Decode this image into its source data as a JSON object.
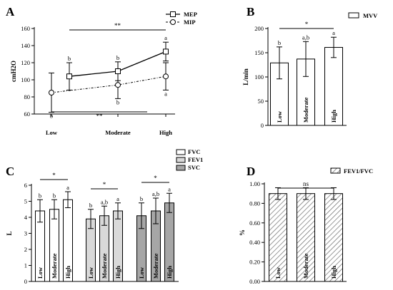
{
  "panels": {
    "A": "A",
    "B": "B",
    "C": "C",
    "D": "D"
  },
  "chart_data": [
    {
      "panel": "A",
      "type": "line",
      "ylabel": "cmH2O",
      "ylim": [
        60,
        160
      ],
      "yticks": [
        60,
        80,
        100,
        120,
        140,
        160
      ],
      "categories": [
        "Low",
        "Moderate",
        "High"
      ],
      "series": [
        {
          "name": "MEP",
          "marker": "square",
          "line": "solid",
          "values": [
            104,
            110,
            133
          ],
          "err": [
            16,
            11,
            11
          ],
          "letters": [
            "b",
            "b",
            "a"
          ]
        },
        {
          "name": "MIP",
          "marker": "circle",
          "line": "dotted",
          "values": [
            85,
            94,
            104
          ],
          "err": [
            23,
            16,
            16
          ],
          "letters": [
            "b",
            "b",
            "a"
          ]
        }
      ],
      "significance": [
        "**",
        "**"
      ]
    },
    {
      "panel": "B",
      "type": "bar",
      "ylabel": "L/min",
      "ylim": [
        0,
        200
      ],
      "yticks": [
        0,
        50,
        100,
        150,
        200
      ],
      "categories": [
        "Low",
        "Moderate",
        "High"
      ],
      "series": [
        {
          "name": "MVV",
          "fill": "#ffffff",
          "values": [
            129,
            137,
            161
          ],
          "err": [
            33,
            36,
            21
          ],
          "letters": [
            "b",
            "a,b",
            "a"
          ]
        }
      ],
      "significance": [
        "*"
      ]
    },
    {
      "panel": "C",
      "type": "bar",
      "ylabel": "L",
      "ylim": [
        0,
        6
      ],
      "yticks": [
        0,
        1,
        2,
        3,
        4,
        5,
        6
      ],
      "categories": [
        "Low",
        "Moderate",
        "High"
      ],
      "series": [
        {
          "name": "FVC",
          "fill": "#ffffff",
          "values": [
            4.4,
            4.5,
            5.1
          ],
          "err": [
            0.7,
            0.6,
            0.5
          ],
          "letters": [
            "b",
            "b",
            "a"
          ]
        },
        {
          "name": "FEV1",
          "fill": "#d9d9d9",
          "values": [
            3.9,
            4.1,
            4.4
          ],
          "err": [
            0.6,
            0.6,
            0.5
          ],
          "letters": [
            "b",
            "a,b",
            "a"
          ]
        },
        {
          "name": "SVC",
          "fill": "#a6a6a6",
          "values": [
            4.1,
            4.4,
            4.9
          ],
          "err": [
            0.8,
            0.8,
            0.6
          ],
          "letters": [
            "b",
            "a,b",
            "a"
          ]
        }
      ],
      "significance": [
        "*",
        "*",
        "*"
      ]
    },
    {
      "panel": "D",
      "type": "bar",
      "ylabel": "%",
      "ylim": [
        0,
        1
      ],
      "yticks": [
        "0.00",
        "0.20",
        "0.40",
        "0.60",
        "0.80",
        "1.00"
      ],
      "categories": [
        "Low",
        "Moderate",
        "High"
      ],
      "series": [
        {
          "name": "FEV1/FVC",
          "fill": "hatch",
          "values": [
            0.9,
            0.9,
            0.9
          ],
          "err": [
            0.06,
            0.06,
            0.06
          ]
        }
      ],
      "significance": [
        "ns"
      ]
    }
  ]
}
